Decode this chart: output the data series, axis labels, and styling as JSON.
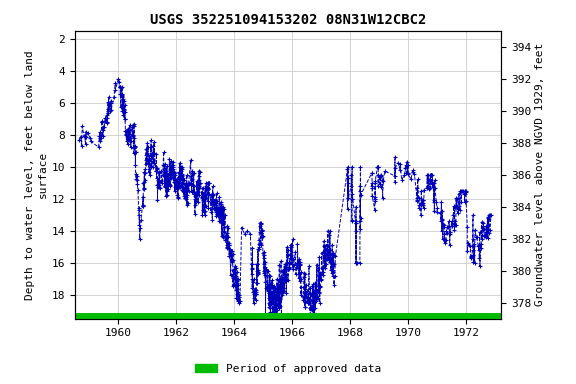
{
  "title": "USGS 352251094153202 08N31W12CBC2",
  "ylabel_left": "Depth to water level, feet below land\nsurface",
  "ylabel_right": "Groundwater level above NGVD 1929, feet",
  "ylim_left": [
    19.5,
    1.5
  ],
  "ylim_right": [
    377,
    395
  ],
  "xlim": [
    1958.5,
    1973.2
  ],
  "yticks_left": [
    2,
    4,
    6,
    8,
    10,
    12,
    14,
    16,
    18
  ],
  "yticks_right": [
    378,
    380,
    382,
    384,
    386,
    388,
    390,
    392,
    394
  ],
  "xticks": [
    1960,
    1962,
    1964,
    1966,
    1968,
    1970,
    1972
  ],
  "line_color": "#0000BB",
  "marker": "+",
  "markersize": 3,
  "linestyle": "--",
  "linewidth": 0.7,
  "legend_label": "Period of approved data",
  "legend_color": "#00BB00",
  "background_color": "#ffffff",
  "grid_color": "#cccccc",
  "title_fontsize": 10,
  "axis_label_fontsize": 8,
  "tick_fontsize": 8,
  "green_bar_y": 19.35,
  "green_bar_lw": 5
}
